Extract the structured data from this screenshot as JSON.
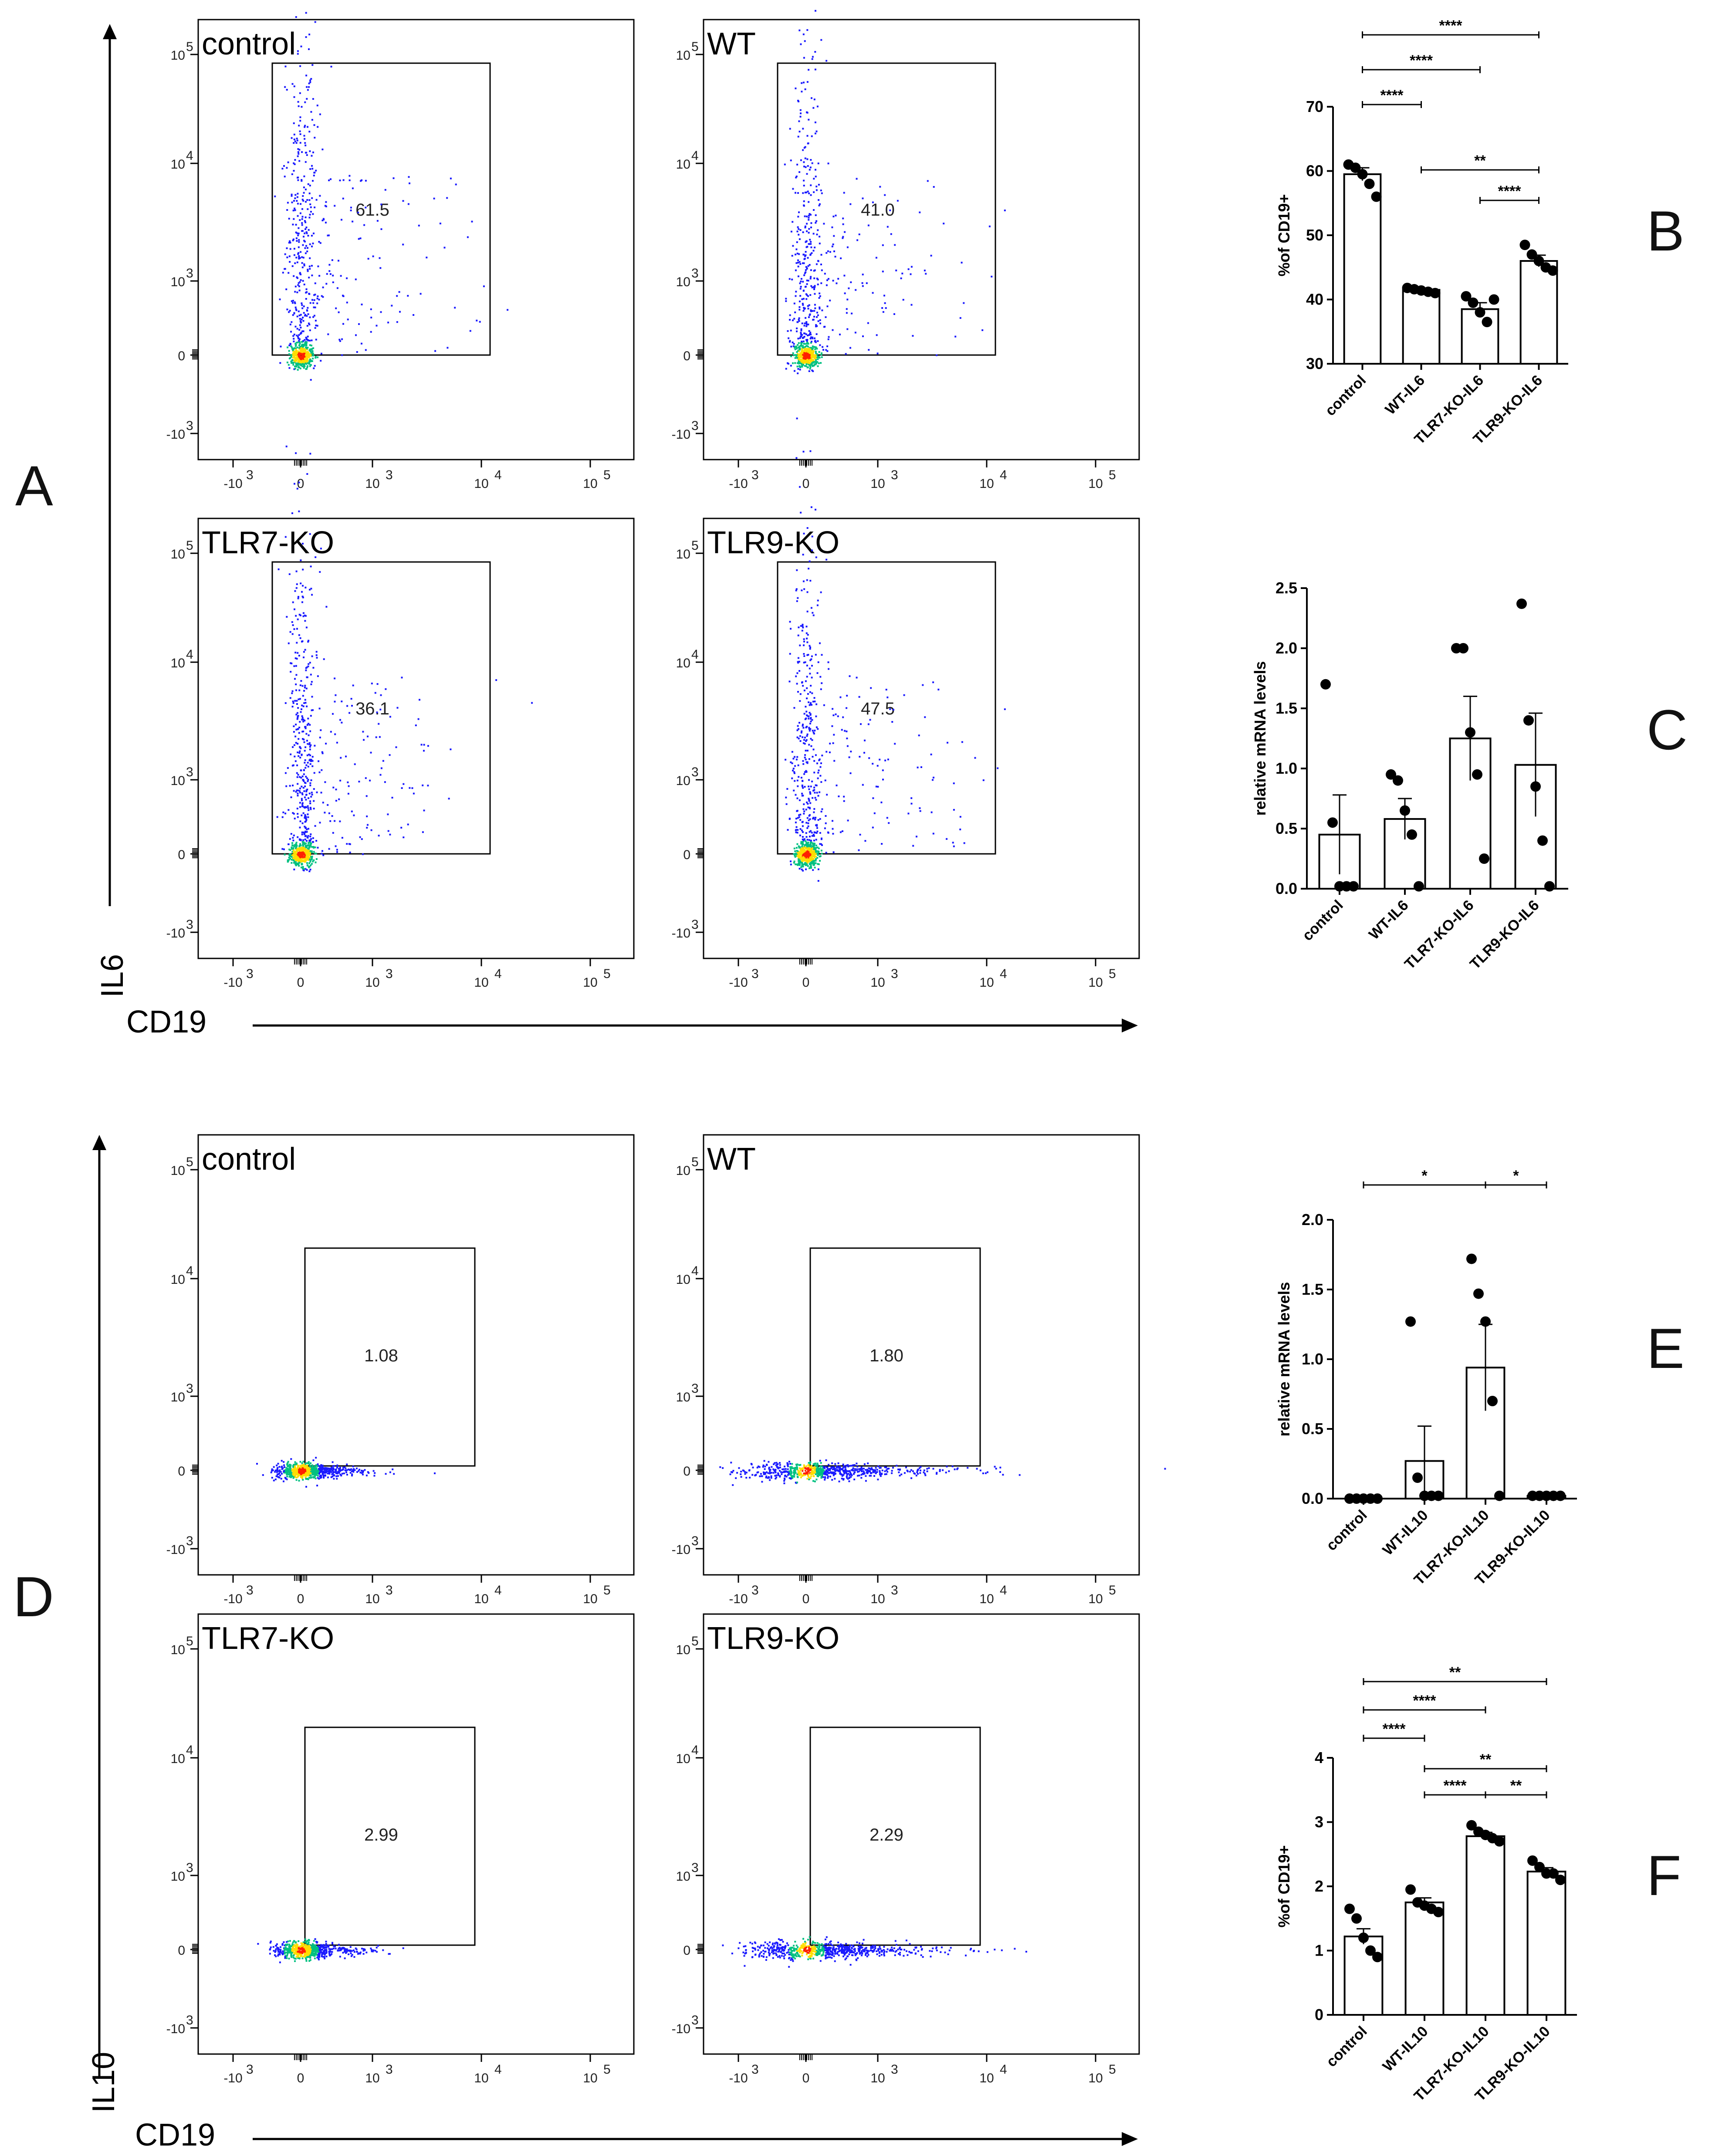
{
  "panels": {
    "A": "A",
    "B": "B",
    "C": "C",
    "D": "D",
    "E": "E",
    "F": "F"
  },
  "flow_axes": {
    "A": {
      "y_label": "IL6",
      "x_label": "CD19"
    },
    "D": {
      "y_label": "IL10",
      "x_label": "CD19"
    }
  },
  "flow_tick_labels": {
    "x": [
      "-10",
      "0",
      "10",
      "10",
      "10"
    ],
    "x_exp": [
      "3",
      "",
      "3",
      "4",
      "5"
    ],
    "y": [
      "10",
      "10",
      "10",
      "0",
      "-10"
    ],
    "y_exp": [
      "5",
      "4",
      "3",
      "",
      "3"
    ]
  },
  "flow_plots": [
    {
      "panel": "A",
      "title": "control",
      "gate_pct": "61.5"
    },
    {
      "panel": "A",
      "title": "WT",
      "gate_pct": "41.0"
    },
    {
      "panel": "A",
      "title": "TLR7-KO",
      "gate_pct": "36.1"
    },
    {
      "panel": "A",
      "title": "TLR9-KO",
      "gate_pct": "47.5"
    },
    {
      "panel": "D",
      "title": "control",
      "gate_pct": "1.08"
    },
    {
      "panel": "D",
      "title": "WT",
      "gate_pct": "1.80"
    },
    {
      "panel": "D",
      "title": "TLR7-KO",
      "gate_pct": "2.99"
    },
    {
      "panel": "D",
      "title": "TLR9-KO",
      "gate_pct": "2.29"
    }
  ],
  "colors": {
    "dot_low": "#1a1aff",
    "dot_mid": "#00c080",
    "dot_high": "#ff2000",
    "dot_core": "#ffdd00",
    "axis": "#000000"
  },
  "chart_data": [
    {
      "id": "B",
      "type": "bar",
      "ylabel": "%of CD19+",
      "categories": [
        "control",
        "WT-IL6",
        "TLR7-KO-IL6",
        "TLR9-KO-IL6"
      ],
      "values": [
        59.5,
        41.5,
        38.5,
        46
      ],
      "errors": [
        1.0,
        0.3,
        1.0,
        0.9
      ],
      "points": [
        [
          61,
          60.5,
          59.5,
          58,
          56
        ],
        [
          41.8,
          41.6,
          41.4,
          41.2,
          41.0
        ],
        [
          40.5,
          39.5,
          38,
          36.5,
          40
        ],
        [
          48.5,
          47,
          46,
          45,
          44.5
        ]
      ],
      "ylim": [
        30,
        70
      ],
      "yticks": [
        30,
        40,
        50,
        60,
        70
      ],
      "significance": [
        {
          "from": 0,
          "to": 3,
          "label": "****"
        },
        {
          "from": 0,
          "to": 2,
          "label": "****"
        },
        {
          "from": 0,
          "to": 1,
          "label": "****"
        },
        {
          "from": 1,
          "to": 3,
          "label": "**"
        },
        {
          "from": 2,
          "to": 3,
          "label": "****"
        }
      ]
    },
    {
      "id": "C",
      "type": "bar",
      "ylabel": "relative mRNA levels",
      "categories": [
        "control",
        "WT-IL6",
        "TLR7-KO-IL6",
        "TLR9-KO-IL6"
      ],
      "values": [
        0.45,
        0.58,
        1.25,
        1.03
      ],
      "errors": [
        0.33,
        0.17,
        0.35,
        0.43
      ],
      "points": [
        [
          1.7,
          0.55,
          0.02,
          0.02,
          0.02
        ],
        [
          0.95,
          0.9,
          0.65,
          0.45,
          0.02
        ],
        [
          2.0,
          2.0,
          1.3,
          0.95,
          0.25
        ],
        [
          2.37,
          1.4,
          0.85,
          0.4,
          0.02
        ]
      ],
      "ylim": [
        0,
        2.5
      ],
      "yticks": [
        0.0,
        0.5,
        1.0,
        1.5,
        2.0,
        2.5
      ],
      "significance": []
    },
    {
      "id": "E",
      "type": "bar",
      "ylabel": "relative mRNA levels",
      "categories": [
        "control",
        "WT-IL10",
        "TLR7-KO-IL10",
        "TLR9-KO-IL10"
      ],
      "values": [
        0.0,
        0.27,
        0.94,
        0.02
      ],
      "errors": [
        0.0,
        0.25,
        0.31,
        0.01
      ],
      "points": [
        [
          0.0,
          0.0,
          0.0,
          0.0,
          0.0
        ],
        [
          1.27,
          0.15,
          0.02,
          0.02,
          0.02
        ],
        [
          1.72,
          1.47,
          1.27,
          0.7,
          0.02
        ],
        [
          0.02,
          0.02,
          0.02,
          0.02,
          0.02
        ]
      ],
      "ylim": [
        0,
        2.0
      ],
      "yticks": [
        0.0,
        0.5,
        1.0,
        1.5,
        2.0
      ],
      "significance": [
        {
          "from": 0,
          "to": 2,
          "label": "*"
        },
        {
          "from": 2,
          "to": 3,
          "label": "*"
        }
      ]
    },
    {
      "id": "F",
      "type": "bar",
      "ylabel": "%of CD19+",
      "categories": [
        "control",
        "WT-IL10",
        "TLR7-KO-IL10",
        "TLR9-KO-IL10"
      ],
      "values": [
        1.22,
        1.75,
        2.78,
        2.23
      ],
      "errors": [
        0.12,
        0.07,
        0.06,
        0.06
      ],
      "points": [
        [
          1.65,
          1.5,
          1.2,
          1.0,
          0.9
        ],
        [
          1.95,
          1.75,
          1.7,
          1.65,
          1.6
        ],
        [
          2.95,
          2.85,
          2.8,
          2.75,
          2.7
        ],
        [
          2.4,
          2.3,
          2.2,
          2.2,
          2.1
        ]
      ],
      "ylim": [
        0,
        4
      ],
      "yticks": [
        0,
        1,
        2,
        3,
        4
      ],
      "significance": [
        {
          "from": 0,
          "to": 3,
          "label": "**"
        },
        {
          "from": 0,
          "to": 2,
          "label": "****"
        },
        {
          "from": 0,
          "to": 1,
          "label": "****"
        },
        {
          "from": 1,
          "to": 3,
          "label": "**"
        },
        {
          "from": 1,
          "to": 2,
          "label": "****"
        },
        {
          "from": 2,
          "to": 3,
          "label": "**"
        }
      ]
    }
  ]
}
